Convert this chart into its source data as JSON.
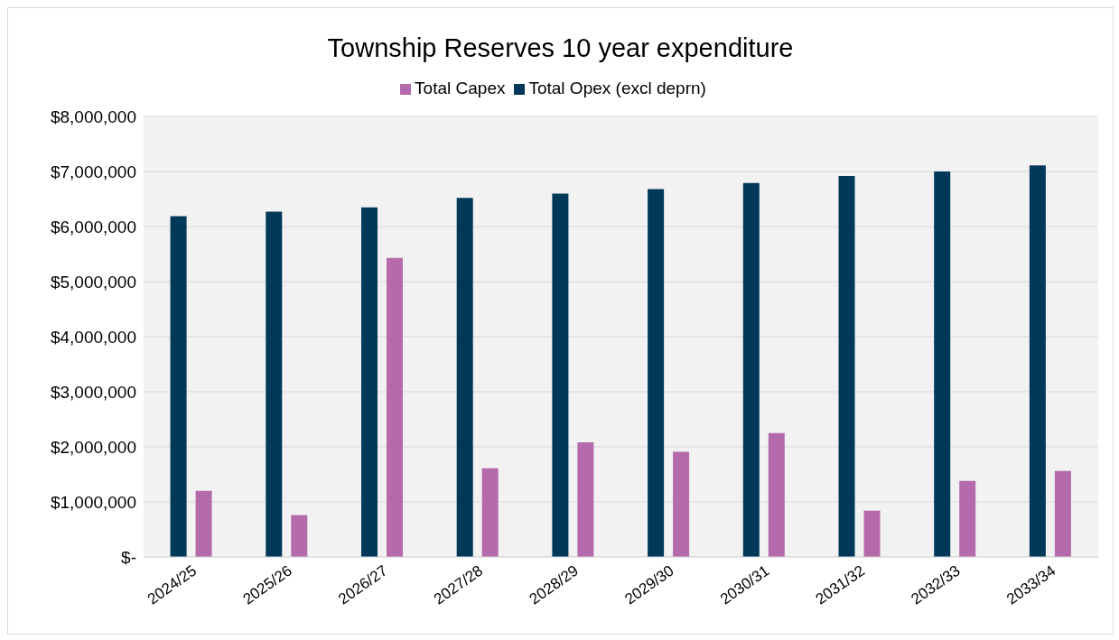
{
  "chart_data": {
    "type": "bar",
    "title": "Township Reserves 10 year expenditure",
    "categories": [
      "2024/25",
      "2025/26",
      "2026/27",
      "2027/28",
      "2028/29",
      "2029/30",
      "2030/31",
      "2031/32",
      "2032/33",
      "2033/34"
    ],
    "series": [
      {
        "name": "Total Opex (excl deprn)",
        "color": "#003859",
        "values": [
          6190000,
          6270000,
          6350000,
          6520000,
          6600000,
          6680000,
          6790000,
          6920000,
          7000000,
          7110000
        ]
      },
      {
        "name": "Total Capex",
        "color": "#b46aab",
        "values": [
          1200000,
          760000,
          5430000,
          1610000,
          2080000,
          1910000,
          2250000,
          840000,
          1380000,
          1560000
        ]
      }
    ],
    "ylim": [
      0,
      8000000
    ],
    "yticks": [
      {
        "value": 0,
        "label": "$-"
      },
      {
        "value": 1000000,
        "label": "$1,000,000"
      },
      {
        "value": 2000000,
        "label": "$2,000,000"
      },
      {
        "value": 3000000,
        "label": "$3,000,000"
      },
      {
        "value": 4000000,
        "label": "$4,000,000"
      },
      {
        "value": 5000000,
        "label": "$5,000,000"
      },
      {
        "value": 6000000,
        "label": "$6,000,000"
      },
      {
        "value": 7000000,
        "label": "$7,000,000"
      },
      {
        "value": 8000000,
        "label": "$8,000,000"
      }
    ],
    "grid": "y",
    "legend": "top"
  }
}
